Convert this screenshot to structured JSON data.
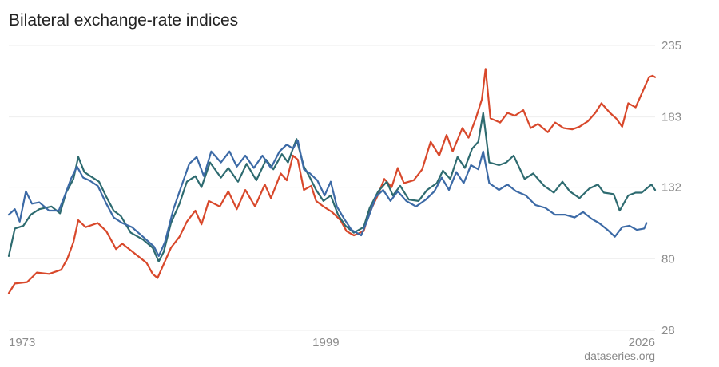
{
  "title": "Bilateral exchange-rate indices",
  "source": "dataseries.org",
  "chart_data": {
    "type": "line",
    "ylim": [
      28,
      235
    ],
    "y_ticks": [
      28,
      80,
      132,
      183,
      235
    ],
    "xlim": [
      1973,
      2026
    ],
    "x_ticks": [
      1973,
      1999,
      2026
    ],
    "grid": true,
    "legend": "none",
    "series": [
      {
        "color": "#d8482b",
        "points": [
          [
            1973,
            55
          ],
          [
            1973.5,
            62
          ],
          [
            1974.5,
            63
          ],
          [
            1975.3,
            70
          ],
          [
            1976.3,
            69
          ],
          [
            1977.3,
            72
          ],
          [
            1977.8,
            80
          ],
          [
            1978.3,
            92
          ],
          [
            1978.7,
            108
          ],
          [
            1979.3,
            103
          ],
          [
            1980.3,
            106
          ],
          [
            1981,
            100
          ],
          [
            1981.8,
            87
          ],
          [
            1982.3,
            91
          ],
          [
            1983.3,
            84
          ],
          [
            1984.3,
            77
          ],
          [
            1984.8,
            69
          ],
          [
            1985.2,
            66
          ],
          [
            1985.6,
            74
          ],
          [
            1986.3,
            88
          ],
          [
            1987,
            96
          ],
          [
            1987.6,
            107
          ],
          [
            1988.3,
            115
          ],
          [
            1988.8,
            105
          ],
          [
            1989.4,
            122
          ],
          [
            1990.3,
            118
          ],
          [
            1991,
            129
          ],
          [
            1991.7,
            116
          ],
          [
            1992.4,
            130
          ],
          [
            1993.2,
            118
          ],
          [
            1994,
            134
          ],
          [
            1994.5,
            124
          ],
          [
            1995.3,
            142
          ],
          [
            1995.8,
            137
          ],
          [
            1996.3,
            155
          ],
          [
            1996.7,
            152
          ],
          [
            1997.2,
            130
          ],
          [
            1997.8,
            133
          ],
          [
            1998.2,
            122
          ],
          [
            1998.8,
            118
          ],
          [
            1999.5,
            114
          ],
          [
            2000.2,
            108
          ],
          [
            2000.7,
            100
          ],
          [
            2001.3,
            97
          ],
          [
            2002.1,
            100
          ],
          [
            2002.5,
            112
          ],
          [
            2003.2,
            125
          ],
          [
            2003.8,
            138
          ],
          [
            2004.4,
            132
          ],
          [
            2004.9,
            146
          ],
          [
            2005.4,
            135
          ],
          [
            2006.2,
            137
          ],
          [
            2006.9,
            145
          ],
          [
            2007.6,
            165
          ],
          [
            2008.3,
            155
          ],
          [
            2008.9,
            170
          ],
          [
            2009.4,
            158
          ],
          [
            2010.2,
            175
          ],
          [
            2010.7,
            168
          ],
          [
            2011.3,
            182
          ],
          [
            2011.8,
            196
          ],
          [
            2012.1,
            218
          ],
          [
            2012.5,
            182
          ],
          [
            2013.3,
            179
          ],
          [
            2013.9,
            186
          ],
          [
            2014.5,
            184
          ],
          [
            2015.2,
            188
          ],
          [
            2015.8,
            175
          ],
          [
            2016.4,
            178
          ],
          [
            2017.2,
            172
          ],
          [
            2017.8,
            179
          ],
          [
            2018.5,
            175
          ],
          [
            2019.2,
            174
          ],
          [
            2019.8,
            176
          ],
          [
            2020.5,
            180
          ],
          [
            2021.1,
            186
          ],
          [
            2021.6,
            193
          ],
          [
            2022.3,
            186
          ],
          [
            2022.8,
            182
          ],
          [
            2023.3,
            176
          ],
          [
            2023.8,
            193
          ],
          [
            2024.4,
            190
          ],
          [
            2024.9,
            200
          ],
          [
            2025.2,
            206
          ],
          [
            2025.5,
            212
          ],
          [
            2025.8,
            213
          ],
          [
            2026,
            212
          ]
        ]
      },
      {
        "color": "#2e6b70",
        "points": [
          [
            1973,
            82
          ],
          [
            1973.5,
            102
          ],
          [
            1974.2,
            104
          ],
          [
            1974.8,
            112
          ],
          [
            1975.5,
            116
          ],
          [
            1976.5,
            118
          ],
          [
            1977.2,
            113
          ],
          [
            1977.7,
            128
          ],
          [
            1978.3,
            138
          ],
          [
            1978.7,
            154
          ],
          [
            1979.2,
            143
          ],
          [
            1979.7,
            140
          ],
          [
            1980.4,
            136
          ],
          [
            1981,
            125
          ],
          [
            1981.6,
            115
          ],
          [
            1982.2,
            111
          ],
          [
            1983,
            99
          ],
          [
            1984,
            94
          ],
          [
            1984.8,
            88
          ],
          [
            1985.3,
            78
          ],
          [
            1985.7,
            85
          ],
          [
            1986.3,
            106
          ],
          [
            1987,
            120
          ],
          [
            1987.6,
            136
          ],
          [
            1988.3,
            140
          ],
          [
            1988.8,
            132
          ],
          [
            1989.5,
            150
          ],
          [
            1990.4,
            139
          ],
          [
            1991,
            146
          ],
          [
            1991.8,
            136
          ],
          [
            1992.5,
            149
          ],
          [
            1993.3,
            137
          ],
          [
            1994.1,
            152
          ],
          [
            1994.7,
            145
          ],
          [
            1995.4,
            156
          ],
          [
            1995.9,
            150
          ],
          [
            1996.3,
            160
          ],
          [
            1996.6,
            167
          ],
          [
            1997.2,
            147
          ],
          [
            1997.7,
            139
          ],
          [
            1998.2,
            130
          ],
          [
            1998.8,
            122
          ],
          [
            1999.4,
            126
          ],
          [
            2000,
            112
          ],
          [
            2000.6,
            104
          ],
          [
            2001.3,
            99
          ],
          [
            2002.1,
            103
          ],
          [
            2002.6,
            117
          ],
          [
            2003.3,
            129
          ],
          [
            2004,
            136
          ],
          [
            2004.5,
            126
          ],
          [
            2005.1,
            133
          ],
          [
            2005.8,
            123
          ],
          [
            2006.6,
            122
          ],
          [
            2007.3,
            130
          ],
          [
            2008.1,
            135
          ],
          [
            2008.6,
            144
          ],
          [
            2009.2,
            138
          ],
          [
            2009.8,
            154
          ],
          [
            2010.4,
            146
          ],
          [
            2011,
            160
          ],
          [
            2011.5,
            165
          ],
          [
            2011.9,
            186
          ],
          [
            2012.4,
            150
          ],
          [
            2013.2,
            148
          ],
          [
            2013.8,
            150
          ],
          [
            2014.4,
            155
          ],
          [
            2015.3,
            138
          ],
          [
            2016,
            142
          ],
          [
            2016.9,
            133
          ],
          [
            2017.7,
            128
          ],
          [
            2018.4,
            136
          ],
          [
            2019,
            129
          ],
          [
            2019.8,
            124
          ],
          [
            2020.6,
            131
          ],
          [
            2021.3,
            134
          ],
          [
            2021.8,
            128
          ],
          [
            2022.6,
            127
          ],
          [
            2023.1,
            115
          ],
          [
            2023.8,
            126
          ],
          [
            2024.4,
            128
          ],
          [
            2024.9,
            128
          ],
          [
            2025.3,
            131
          ],
          [
            2025.7,
            134
          ],
          [
            2026,
            130
          ]
        ]
      },
      {
        "color": "#3c6aa6",
        "points": [
          [
            1973,
            112
          ],
          [
            1973.5,
            116
          ],
          [
            1973.9,
            107
          ],
          [
            1974.4,
            129
          ],
          [
            1974.9,
            120
          ],
          [
            1975.5,
            121
          ],
          [
            1976.3,
            115
          ],
          [
            1977.1,
            115
          ],
          [
            1977.6,
            126
          ],
          [
            1978.1,
            138
          ],
          [
            1978.6,
            147
          ],
          [
            1979.1,
            139
          ],
          [
            1979.6,
            137
          ],
          [
            1980.3,
            133
          ],
          [
            1981,
            120
          ],
          [
            1981.6,
            110
          ],
          [
            1982.3,
            106
          ],
          [
            1983.1,
            103
          ],
          [
            1984,
            96
          ],
          [
            1984.9,
            89
          ],
          [
            1985.3,
            82
          ],
          [
            1985.8,
            92
          ],
          [
            1986.5,
            116
          ],
          [
            1987.2,
            134
          ],
          [
            1987.8,
            149
          ],
          [
            1988.4,
            154
          ],
          [
            1989,
            140
          ],
          [
            1989.6,
            158
          ],
          [
            1990.4,
            150
          ],
          [
            1991.1,
            158
          ],
          [
            1991.7,
            147
          ],
          [
            1992.4,
            155
          ],
          [
            1993.1,
            146
          ],
          [
            1993.8,
            155
          ],
          [
            1994.5,
            146
          ],
          [
            1995.2,
            158
          ],
          [
            1995.8,
            163
          ],
          [
            1996.3,
            160
          ],
          [
            1996.7,
            166
          ],
          [
            1997.2,
            145
          ],
          [
            1997.7,
            142
          ],
          [
            1998.3,
            137
          ],
          [
            1998.9,
            126
          ],
          [
            1999.4,
            136
          ],
          [
            1999.9,
            118
          ],
          [
            2000.5,
            109
          ],
          [
            2001.1,
            101
          ],
          [
            2001.9,
            97
          ],
          [
            2002.4,
            108
          ],
          [
            2003.1,
            125
          ],
          [
            2003.7,
            130
          ],
          [
            2004.3,
            122
          ],
          [
            2004.9,
            129
          ],
          [
            2005.6,
            122
          ],
          [
            2006.4,
            118
          ],
          [
            2007.2,
            123
          ],
          [
            2007.9,
            129
          ],
          [
            2008.5,
            139
          ],
          [
            2009.1,
            130
          ],
          [
            2009.7,
            143
          ],
          [
            2010.3,
            135
          ],
          [
            2010.9,
            148
          ],
          [
            2011.5,
            145
          ],
          [
            2011.9,
            158
          ],
          [
            2012.4,
            135
          ],
          [
            2013.2,
            130
          ],
          [
            2013.9,
            134
          ],
          [
            2014.6,
            129
          ],
          [
            2015.4,
            126
          ],
          [
            2016.2,
            119
          ],
          [
            2017,
            117
          ],
          [
            2017.8,
            112
          ],
          [
            2018.6,
            112
          ],
          [
            2019.4,
            110
          ],
          [
            2020.1,
            114
          ],
          [
            2020.8,
            109
          ],
          [
            2021.4,
            106
          ],
          [
            2022.1,
            101
          ],
          [
            2022.7,
            96
          ],
          [
            2023.3,
            103
          ],
          [
            2023.9,
            104
          ],
          [
            2024.5,
            101
          ],
          [
            2025.1,
            102
          ],
          [
            2025.3,
            106
          ]
        ]
      }
    ]
  }
}
